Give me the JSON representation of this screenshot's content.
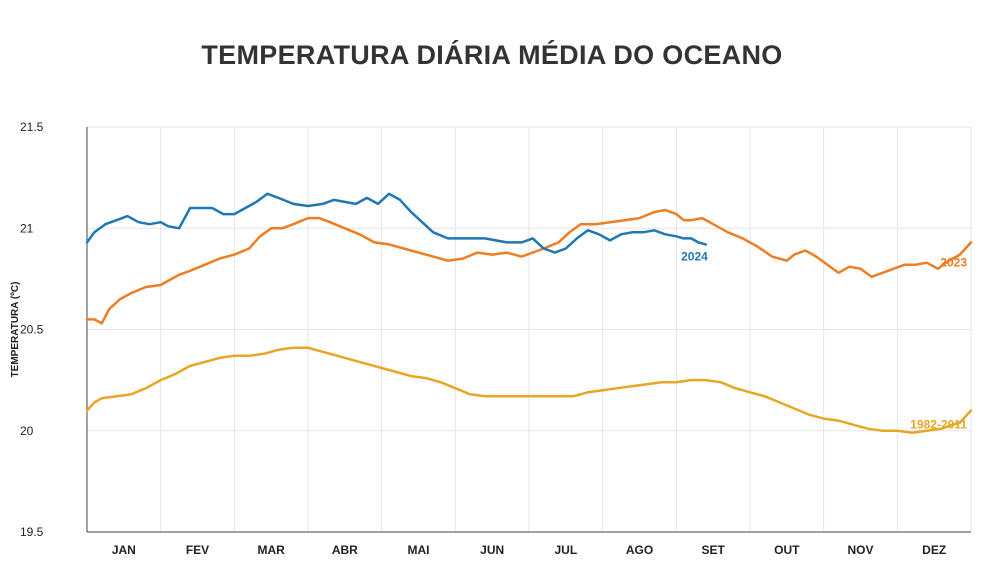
{
  "chart_data": {
    "type": "line",
    "title": "TEMPERATURA DIÁRIA MÉDIA DO OCEANO",
    "xlabel": "",
    "ylabel": "TEMPERATURA (ºC)",
    "ylim": [
      19.5,
      21.5
    ],
    "yticks": [
      "19.5",
      "20",
      "20.5",
      "21",
      "21.5"
    ],
    "categories": [
      "JAN",
      "FEV",
      "MAR",
      "ABR",
      "MAI",
      "JUN",
      "JUL",
      "AGO",
      "SET",
      "OUT",
      "NOV",
      "DEZ"
    ],
    "grid": true,
    "x_domain": [
      0,
      12
    ],
    "series": [
      {
        "name": "1982-2011",
        "color": "#E8A624",
        "x": [
          0,
          0.05,
          0.1,
          0.2,
          0.4,
          0.6,
          0.8,
          1.0,
          1.2,
          1.4,
          1.6,
          1.8,
          2.0,
          2.2,
          2.4,
          2.6,
          2.8,
          3.0,
          3.2,
          3.4,
          3.6,
          3.8,
          4.0,
          4.2,
          4.4,
          4.6,
          4.8,
          5.0,
          5.2,
          5.4,
          5.6,
          5.8,
          6.0,
          6.2,
          6.4,
          6.6,
          6.8,
          7.0,
          7.2,
          7.4,
          7.6,
          7.8,
          8.0,
          8.2,
          8.4,
          8.6,
          8.8,
          9.0,
          9.2,
          9.4,
          9.6,
          9.8,
          10.0,
          10.2,
          10.4,
          10.6,
          10.8,
          11.0,
          11.2,
          11.4,
          11.6,
          11.75,
          11.85,
          12.0
        ],
        "values": [
          20.1,
          20.12,
          20.14,
          20.16,
          20.17,
          20.18,
          20.21,
          20.25,
          20.28,
          20.32,
          20.34,
          20.36,
          20.37,
          20.37,
          20.38,
          20.4,
          20.41,
          20.41,
          20.39,
          20.37,
          20.35,
          20.33,
          20.31,
          20.29,
          20.27,
          20.26,
          20.24,
          20.21,
          20.18,
          20.17,
          20.17,
          20.17,
          20.17,
          20.17,
          20.17,
          20.17,
          20.19,
          20.2,
          20.21,
          20.22,
          20.23,
          20.24,
          20.24,
          20.25,
          20.25,
          20.24,
          20.21,
          20.19,
          20.17,
          20.14,
          20.11,
          20.08,
          20.06,
          20.05,
          20.03,
          20.01,
          20.0,
          20.0,
          19.99,
          20.0,
          20.01,
          20.03,
          20.04,
          20.1
        ]
      },
      {
        "name": "2023",
        "color": "#EF7D22",
        "x": [
          0,
          0.1,
          0.2,
          0.3,
          0.45,
          0.6,
          0.8,
          1.0,
          1.1,
          1.25,
          1.4,
          1.6,
          1.8,
          2.0,
          2.2,
          2.35,
          2.5,
          2.65,
          2.8,
          3.0,
          3.15,
          3.3,
          3.5,
          3.7,
          3.9,
          4.1,
          4.3,
          4.5,
          4.7,
          4.9,
          5.1,
          5.3,
          5.5,
          5.7,
          5.9,
          6.05,
          6.2,
          6.4,
          6.55,
          6.7,
          6.9,
          7.1,
          7.3,
          7.5,
          7.7,
          7.85,
          8.0,
          8.1,
          8.2,
          8.35,
          8.5,
          8.7,
          8.9,
          9.1,
          9.3,
          9.5,
          9.6,
          9.75,
          9.9,
          10.05,
          10.2,
          10.35,
          10.5,
          10.65,
          10.8,
          10.95,
          11.1,
          11.25,
          11.4,
          11.55,
          11.7,
          11.85,
          12.0
        ],
        "values": [
          20.55,
          20.55,
          20.53,
          20.6,
          20.65,
          20.68,
          20.71,
          20.72,
          20.74,
          20.77,
          20.79,
          20.82,
          20.85,
          20.87,
          20.9,
          20.96,
          21.0,
          21.0,
          21.02,
          21.05,
          21.05,
          21.03,
          21.0,
          20.97,
          20.93,
          20.92,
          20.9,
          20.88,
          20.86,
          20.84,
          20.85,
          20.88,
          20.87,
          20.88,
          20.86,
          20.88,
          20.9,
          20.93,
          20.98,
          21.02,
          21.02,
          21.03,
          21.04,
          21.05,
          21.08,
          21.09,
          21.07,
          21.04,
          21.04,
          21.05,
          21.02,
          20.98,
          20.95,
          20.91,
          20.86,
          20.84,
          20.87,
          20.89,
          20.86,
          20.82,
          20.78,
          20.81,
          20.8,
          20.76,
          20.78,
          20.8,
          20.82,
          20.82,
          20.83,
          20.8,
          20.84,
          20.87,
          20.93
        ]
      },
      {
        "name": "2024",
        "color": "#1F77B4",
        "x": [
          0,
          0.1,
          0.25,
          0.4,
          0.55,
          0.7,
          0.85,
          1.0,
          1.1,
          1.25,
          1.4,
          1.55,
          1.7,
          1.85,
          2.0,
          2.15,
          2.3,
          2.45,
          2.6,
          2.8,
          3.0,
          3.2,
          3.35,
          3.5,
          3.65,
          3.8,
          3.95,
          4.1,
          4.25,
          4.4,
          4.55,
          4.7,
          4.9,
          5.1,
          5.25,
          5.4,
          5.55,
          5.7,
          5.9,
          6.05,
          6.2,
          6.35,
          6.5,
          6.65,
          6.8,
          6.95,
          7.1,
          7.25,
          7.4,
          7.55,
          7.7,
          7.85,
          8.0,
          8.1,
          8.2,
          8.3,
          8.4
        ],
        "values": [
          20.93,
          20.98,
          21.02,
          21.04,
          21.06,
          21.03,
          21.02,
          21.03,
          21.01,
          21.0,
          21.1,
          21.1,
          21.1,
          21.07,
          21.07,
          21.1,
          21.13,
          21.17,
          21.15,
          21.12,
          21.11,
          21.12,
          21.14,
          21.13,
          21.12,
          21.15,
          21.12,
          21.17,
          21.14,
          21.08,
          21.03,
          20.98,
          20.95,
          20.95,
          20.95,
          20.95,
          20.94,
          20.93,
          20.93,
          20.95,
          20.9,
          20.88,
          20.9,
          20.95,
          20.99,
          20.97,
          20.94,
          20.97,
          20.98,
          20.98,
          20.99,
          20.97,
          20.96,
          20.95,
          20.95,
          20.93,
          20.92
        ]
      }
    ]
  }
}
